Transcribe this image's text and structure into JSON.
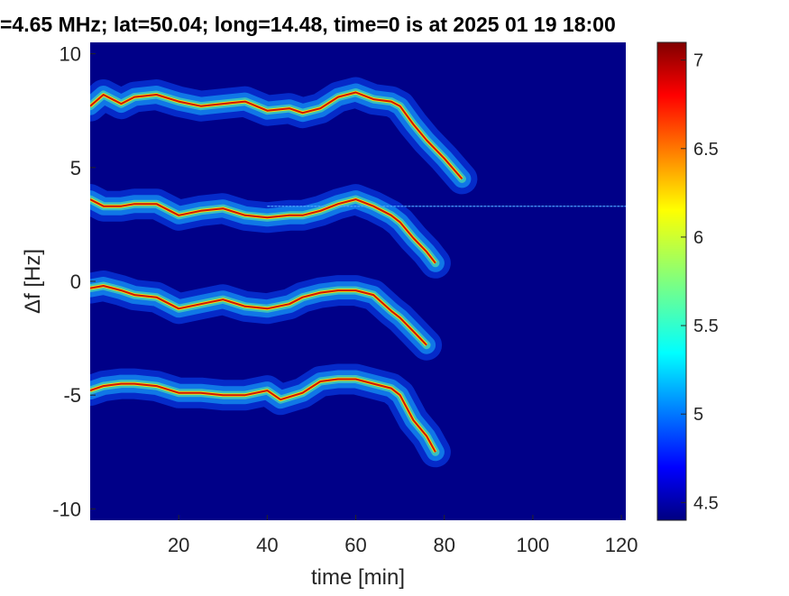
{
  "chart_data": {
    "type": "heatmap",
    "title": "=4.65 MHz;  lat=50.04; long=14.48, time=0 is at 2025 01 19 18:00",
    "xlabel": "time [min]",
    "ylabel": "Δf [Hz]",
    "xlim": [
      0,
      121
    ],
    "ylim": [
      -10.5,
      10.5
    ],
    "x_ticks": [
      20,
      40,
      60,
      80,
      100,
      120
    ],
    "y_ticks": [
      -10,
      -5,
      0,
      5,
      10
    ],
    "y_tick_labels": [
      "-10",
      "-5",
      "0",
      "5",
      "10"
    ],
    "colorbar": {
      "range": [
        4.4,
        7.1
      ],
      "ticks": [
        4.5,
        5,
        5.5,
        6,
        6.5,
        7
      ],
      "tick_labels": [
        "4.5",
        "5",
        "5.5",
        "6",
        "6.5",
        "7"
      ],
      "colormap": "jet"
    },
    "background_value": 4.4,
    "horizontal_line": {
      "y": 3.3,
      "x_start": 40,
      "x_end": 121
    },
    "series": [
      {
        "x": [
          0,
          3,
          7,
          10,
          15,
          20,
          25,
          30,
          35,
          40,
          45,
          48,
          52,
          56,
          60,
          64,
          68,
          70,
          73,
          76,
          80,
          84
        ],
        "y": [
          7.7,
          8.2,
          7.8,
          8.1,
          8.2,
          7.9,
          7.7,
          7.8,
          7.9,
          7.5,
          7.6,
          7.4,
          7.6,
          8.1,
          8.3,
          8.0,
          7.9,
          7.7,
          6.9,
          6.2,
          5.4,
          4.5
        ]
      },
      {
        "x": [
          0,
          3,
          7,
          10,
          15,
          20,
          25,
          30,
          35,
          40,
          45,
          48,
          52,
          56,
          60,
          64,
          68,
          70,
          73,
          76,
          78
        ],
        "y": [
          3.6,
          3.3,
          3.3,
          3.4,
          3.4,
          2.9,
          3.1,
          3.2,
          2.9,
          2.8,
          2.9,
          2.9,
          3.1,
          3.4,
          3.6,
          3.3,
          2.9,
          2.6,
          1.9,
          1.3,
          0.8
        ]
      },
      {
        "x": [
          0,
          3,
          7,
          10,
          15,
          20,
          25,
          30,
          35,
          40,
          45,
          48,
          52,
          56,
          60,
          64,
          68,
          70,
          73,
          76
        ],
        "y": [
          -0.3,
          -0.2,
          -0.4,
          -0.6,
          -0.7,
          -1.2,
          -1.0,
          -0.8,
          -1.1,
          -1.2,
          -1.0,
          -0.7,
          -0.5,
          -0.4,
          -0.4,
          -0.6,
          -1.3,
          -1.6,
          -2.2,
          -2.8
        ]
      },
      {
        "x": [
          0,
          3,
          7,
          10,
          15,
          20,
          25,
          30,
          35,
          40,
          43,
          48,
          52,
          56,
          60,
          64,
          68,
          70,
          73,
          76,
          78
        ],
        "y": [
          -4.8,
          -4.6,
          -4.5,
          -4.5,
          -4.6,
          -4.9,
          -4.9,
          -5.0,
          -5.0,
          -4.8,
          -5.2,
          -4.9,
          -4.4,
          -4.3,
          -4.3,
          -4.5,
          -4.7,
          -5.0,
          -6.1,
          -6.8,
          -7.5
        ]
      }
    ]
  }
}
